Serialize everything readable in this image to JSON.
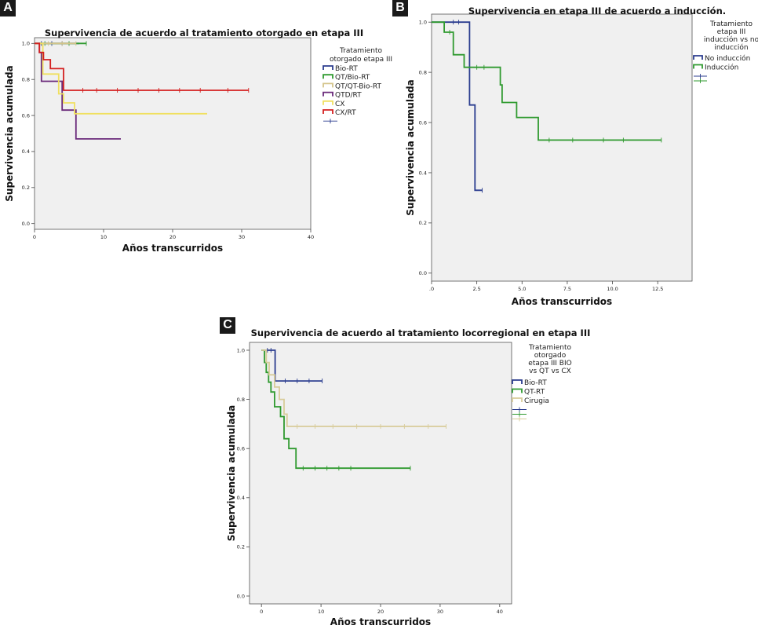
{
  "chart_data": [
    {
      "panel": "A",
      "type": "line",
      "title": "Supervivencia de acuerdo al tratamiento otorgado en etapa III",
      "xlabel": "Años transcurridos",
      "ylabel": "Supervivencia acumulada",
      "xlim": [
        0,
        40
      ],
      "ylim": [
        0,
        1.0
      ],
      "xticks": [
        0,
        10,
        20,
        30,
        40
      ],
      "yticks": [
        0.0,
        0.2,
        0.4,
        0.6,
        0.8,
        1.0
      ],
      "xtick_labels": [
        "0",
        "10",
        "20",
        "30",
        "40"
      ],
      "ytick_labels": [
        "0.0",
        "0.2",
        "0.4",
        "0.6",
        "0.8",
        "1.0"
      ],
      "legend_title": [
        "Tratamiento",
        "otorgado etapa III"
      ],
      "legend_position": "right",
      "series": [
        {
          "name": "Bio-RT",
          "color": "#2b3d8f",
          "steps": [
            [
              0,
              1.0
            ],
            [
              6.5,
              1.0
            ]
          ],
          "censor": [
            1,
            2.5,
            4
          ]
        },
        {
          "name": "QT/Bio-RT",
          "color": "#2f9a2f",
          "steps": [
            [
              0,
              1.0
            ],
            [
              7.5,
              1.0
            ]
          ],
          "censor": [
            1.5,
            5,
            7.5
          ]
        },
        {
          "name": "QT/QT-Bio-RT",
          "color": "#d4c48a",
          "steps": [
            [
              0,
              1.0
            ],
            [
              6,
              1.0
            ]
          ],
          "censor": [
            2,
            4,
            6
          ]
        },
        {
          "name": "QTD/RT",
          "color": "#6a2a7a",
          "steps": [
            [
              0,
              1.0
            ],
            [
              0.7,
              0.95
            ],
            [
              1,
              0.79
            ],
            [
              4,
              0.79
            ],
            [
              4,
              0.63
            ],
            [
              6,
              0.63
            ],
            [
              6,
              0.47
            ],
            [
              12.5,
              0.47
            ]
          ],
          "censor": []
        },
        {
          "name": "CX",
          "color": "#f0e060",
          "steps": [
            [
              0,
              1.0
            ],
            [
              1.2,
              0.83
            ],
            [
              3.5,
              0.83
            ],
            [
              3.5,
              0.72
            ],
            [
              4.2,
              0.72
            ],
            [
              4.2,
              0.67
            ],
            [
              5.8,
              0.67
            ],
            [
              5.8,
              0.61
            ],
            [
              25,
              0.61
            ]
          ],
          "censor": []
        },
        {
          "name": "CX/RT",
          "color": "#d42020",
          "steps": [
            [
              0,
              1.0
            ],
            [
              0.7,
              0.95
            ],
            [
              1.3,
              0.95
            ],
            [
              1.3,
              0.91
            ],
            [
              2.3,
              0.91
            ],
            [
              2.3,
              0.86
            ],
            [
              4.2,
              0.86
            ],
            [
              4.2,
              0.74
            ],
            [
              31,
              0.74
            ]
          ],
          "censor": [
            7,
            9,
            12,
            15,
            18,
            21,
            24,
            28,
            31
          ]
        }
      ],
      "legend_extra_marker": "censored"
    },
    {
      "panel": "B",
      "type": "line",
      "title": "Supervivencia en etapa III de acuerdo a inducción.",
      "xlabel": "Años transcurridos",
      "ylabel": "Supervivencia acumulada",
      "xlim": [
        0,
        14.4
      ],
      "ylim": [
        0,
        1.0
      ],
      "xticks": [
        0,
        2.5,
        5.0,
        7.5,
        10.0,
        12.5
      ],
      "yticks": [
        0.0,
        0.2,
        0.4,
        0.6,
        0.8,
        1.0
      ],
      "xtick_labels": [
        ".0",
        "2.5",
        "5.0",
        "7.5",
        "10.0",
        "12.5"
      ],
      "ytick_labels": [
        "0.0",
        "0.2",
        "0.4",
        "0.6",
        "0.8",
        "1.0"
      ],
      "legend_title": [
        "Tratamiento",
        "etapa III",
        "inducción vs no",
        "inducción"
      ],
      "legend_position": "right",
      "series": [
        {
          "name": "No inducción",
          "color": "#2b3d8f",
          "steps": [
            [
              0,
              1.0
            ],
            [
              2.1,
              1.0
            ],
            [
              2.1,
              0.67
            ],
            [
              2.4,
              0.67
            ],
            [
              2.4,
              0.33
            ],
            [
              2.8,
              0.33
            ]
          ],
          "censor": [
            1.2,
            1.5,
            2.8
          ]
        },
        {
          "name": "Inducción",
          "color": "#2f9a2f",
          "steps": [
            [
              0,
              1.0
            ],
            [
              0.7,
              1.0
            ],
            [
              0.7,
              0.96
            ],
            [
              1.2,
              0.96
            ],
            [
              1.2,
              0.87
            ],
            [
              1.8,
              0.87
            ],
            [
              1.8,
              0.82
            ],
            [
              3.8,
              0.82
            ],
            [
              3.8,
              0.75
            ],
            [
              3.9,
              0.75
            ],
            [
              3.9,
              0.68
            ],
            [
              4.7,
              0.68
            ],
            [
              4.7,
              0.62
            ],
            [
              5.9,
              0.62
            ],
            [
              5.9,
              0.53
            ],
            [
              12.7,
              0.53
            ]
          ],
          "censor": [
            1.0,
            2.5,
            2.9,
            6.5,
            7.8,
            9.5,
            10.6,
            12.7
          ]
        }
      ],
      "legend_extra_marker": "censored"
    },
    {
      "panel": "C",
      "type": "line",
      "title": "Supervivencia de acuerdo al tratamiento locorregional en etapa III",
      "xlabel": "Años transcurridos",
      "ylabel": "Supervivencia acumulada",
      "xlim": [
        -2,
        42
      ],
      "ylim": [
        0,
        1.0
      ],
      "xticks": [
        0,
        10,
        20,
        30,
        40
      ],
      "yticks": [
        0.0,
        0.2,
        0.4,
        0.6,
        0.8,
        1.0
      ],
      "xtick_labels": [
        "0",
        "10",
        "20",
        "30",
        "40"
      ],
      "ytick_labels": [
        "0.0",
        "0.2",
        "0.4",
        "0.6",
        "0.8",
        "1.0"
      ],
      "legend_title": [
        "Tratamiento",
        "otorgado",
        "etapa III BIO",
        "vs QT vs CX"
      ],
      "legend_position": "right",
      "series": [
        {
          "name": "Bio-RT",
          "color": "#2b3d8f",
          "steps": [
            [
              0,
              1.0
            ],
            [
              2.3,
              1.0
            ],
            [
              2.3,
              0.875
            ],
            [
              10.2,
              0.875
            ]
          ],
          "censor": [
            1,
            1.6,
            4,
            6,
            8,
            10.2
          ]
        },
        {
          "name": "QT-RT",
          "color": "#2f9a2f",
          "steps": [
            [
              0,
              1.0
            ],
            [
              0.5,
              0.95
            ],
            [
              0.8,
              0.91
            ],
            [
              1.2,
              0.87
            ],
            [
              1.6,
              0.83
            ],
            [
              2.2,
              0.77
            ],
            [
              3.2,
              0.73
            ],
            [
              3.8,
              0.64
            ],
            [
              4.6,
              0.6
            ],
            [
              5.8,
              0.52
            ],
            [
              25,
              0.52
            ]
          ],
          "censor": [
            7,
            9,
            11,
            13,
            15,
            25
          ]
        },
        {
          "name": "Cirugia",
          "color": "#d8cc9a",
          "steps": [
            [
              0,
              1.0
            ],
            [
              0.8,
              0.95
            ],
            [
              1.3,
              0.9
            ],
            [
              2.2,
              0.85
            ],
            [
              3,
              0.8
            ],
            [
              3.8,
              0.74
            ],
            [
              4.3,
              0.69
            ],
            [
              31,
              0.69
            ]
          ],
          "censor": [
            6,
            9,
            12,
            16,
            20,
            24,
            28,
            31
          ]
        }
      ],
      "legend_extra_marker": "censored"
    }
  ]
}
